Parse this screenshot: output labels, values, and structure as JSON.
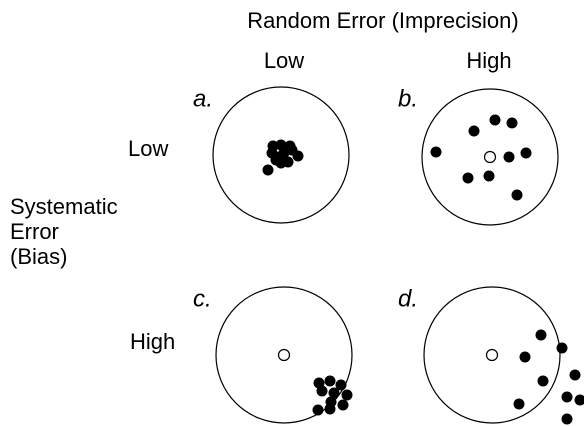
{
  "title": "Random Error (Imprecision)",
  "column_labels": [
    "Low",
    "High"
  ],
  "row_labels": [
    "Low",
    "High"
  ],
  "row_axis_label": [
    "Systematic",
    "Error",
    "(Bias)"
  ],
  "panels": [
    {
      "label": "a."
    },
    {
      "label": "b."
    },
    {
      "label": "c."
    },
    {
      "label": "d."
    }
  ]
}
